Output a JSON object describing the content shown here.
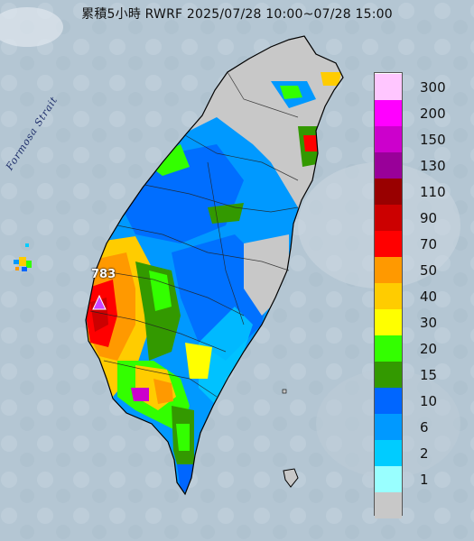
{
  "title": "累積5小時 RWRF 2025/07/28 10:00~07/28 15:00",
  "map_labels": {
    "strait": "Formosa Strait",
    "station": "783"
  },
  "legend": [
    {
      "label": "300",
      "color": "#ffc6ff"
    },
    {
      "label": "200",
      "color": "#ff00ff"
    },
    {
      "label": "150",
      "color": "#cc00cc"
    },
    {
      "label": "130",
      "color": "#990099"
    },
    {
      "label": "110",
      "color": "#990000"
    },
    {
      "label": "90",
      "color": "#cc0000"
    },
    {
      "label": "70",
      "color": "#ff0000"
    },
    {
      "label": "50",
      "color": "#ff9900"
    },
    {
      "label": "40",
      "color": "#ffcc00"
    },
    {
      "label": "30",
      "color": "#ffff00"
    },
    {
      "label": "20",
      "color": "#33ff00"
    },
    {
      "label": "15",
      "color": "#339900"
    },
    {
      "label": "10",
      "color": "#0066ff"
    },
    {
      "label": "6",
      "color": "#0099ff"
    },
    {
      "label": "2",
      "color": "#00ccff"
    },
    {
      "label": "1",
      "color": "#99ffff"
    },
    {
      "label": "",
      "color": "#c8c8c8"
    }
  ]
}
